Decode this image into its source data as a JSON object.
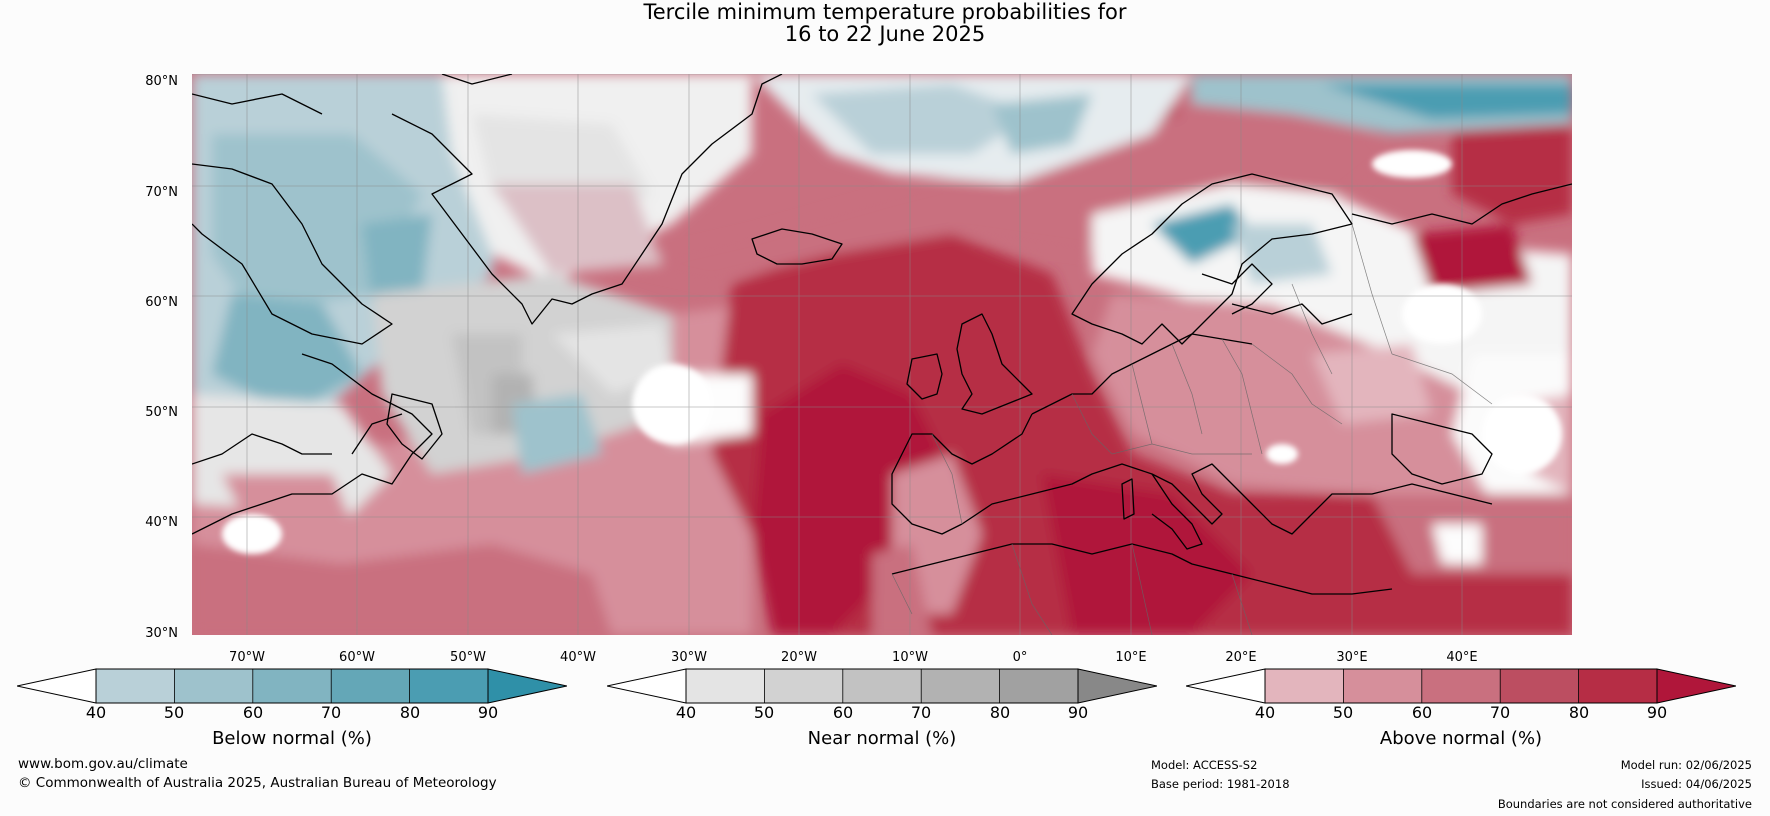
{
  "title": {
    "line1": "Tercile minimum temperature probabilities for",
    "line2": "16 to 22 June 2025"
  },
  "map": {
    "lat_labels": [
      "80°N",
      "70°N",
      "60°N",
      "50°N",
      "40°N",
      "30°N"
    ],
    "lon_labels": [
      "70°W",
      "60°W",
      "50°W",
      "40°W",
      "30°W",
      "20°W",
      "10°W",
      "0°",
      "10°E",
      "20°E",
      "30°E",
      "40°E"
    ]
  },
  "colorbars": {
    "below": {
      "label": "Below normal (%)",
      "ticks": [
        "40",
        "50",
        "60",
        "70",
        "80",
        "90"
      ],
      "colors": [
        "#ffffff",
        "#b9d0d8",
        "#9ec2cc",
        "#81b4c1",
        "#64a7b7",
        "#4b9db2",
        "#2f90a8"
      ]
    },
    "near": {
      "label": "Near normal (%)",
      "ticks": [
        "40",
        "50",
        "60",
        "70",
        "80",
        "90"
      ],
      "colors": [
        "#ffffff",
        "#e4e4e4",
        "#d2d2d2",
        "#c2c2c2",
        "#b2b2b2",
        "#a1a1a1",
        "#888888"
      ]
    },
    "above": {
      "label": "Above normal (%)",
      "ticks": [
        "40",
        "50",
        "60",
        "70",
        "80",
        "90"
      ],
      "colors": [
        "#ffffff",
        "#e3b5bd",
        "#d68f9b",
        "#c9707f",
        "#bc4e61",
        "#b62d45",
        "#b0163a"
      ]
    }
  },
  "footer": {
    "website": "www.bom.gov.au/climate",
    "copyright": "© Commonwealth of Australia 2025, Australian Bureau of Meteorology",
    "model": "Model: ACCESS-S2",
    "base_period": "Base period: 1981-2018",
    "model_run": "Model run: 02/06/2025",
    "issued": "Issued: 04/06/2025",
    "disclaimer": "Boundaries are not considered authoritative"
  }
}
